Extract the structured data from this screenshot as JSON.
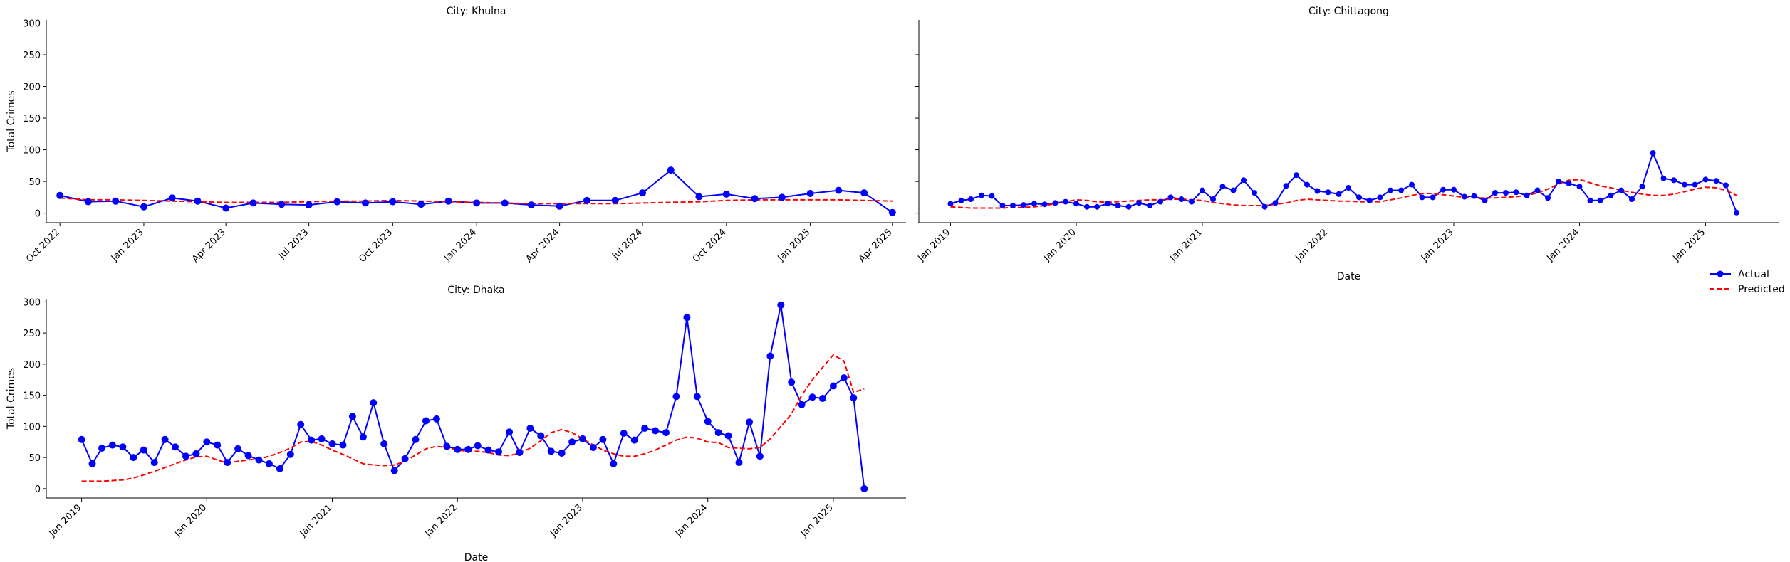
{
  "chart_data": [
    {
      "type": "line",
      "title": "City: Khulna",
      "xlabel": "",
      "ylabel": "Total Crimes",
      "ylim": [
        -15,
        305
      ],
      "yticks": [
        0,
        50,
        100,
        150,
        200,
        250,
        300
      ],
      "xlim": [
        "2022-09-16",
        "2025-04-16"
      ],
      "xticks": [
        {
          "date": "2022-10-01",
          "label": "Oct 2022"
        },
        {
          "date": "2023-01-01",
          "label": "Jan 2023"
        },
        {
          "date": "2023-04-01",
          "label": "Apr 2023"
        },
        {
          "date": "2023-07-01",
          "label": "Jul 2023"
        },
        {
          "date": "2023-10-01",
          "label": "Oct 2023"
        },
        {
          "date": "2024-01-01",
          "label": "Jan 2024"
        },
        {
          "date": "2024-04-01",
          "label": "Apr 2024"
        },
        {
          "date": "2024-07-01",
          "label": "Jul 2024"
        },
        {
          "date": "2024-10-01",
          "label": "Oct 2024"
        },
        {
          "date": "2025-01-01",
          "label": "Jan 2025"
        },
        {
          "date": "2025-04-01",
          "label": "Apr 2025"
        }
      ],
      "start": "2022-10",
      "series": [
        {
          "name": "Actual",
          "values": [
            28,
            18,
            19,
            10,
            24,
            19,
            8,
            16,
            14,
            13,
            18,
            16,
            18,
            14,
            19,
            16,
            16,
            13,
            11,
            20,
            20,
            32,
            68,
            26,
            30,
            23,
            25,
            31,
            36,
            32,
            1
          ]
        },
        {
          "name": "Predicted",
          "values": [
            24,
            21,
            21,
            20,
            19,
            18,
            17,
            17,
            17,
            18,
            19,
            19,
            20,
            19,
            18,
            17,
            16,
            15,
            15,
            15,
            15,
            16,
            17,
            18,
            20,
            21,
            21,
            21,
            21,
            20,
            19
          ]
        }
      ]
    },
    {
      "type": "line",
      "title": "City: Chittagong",
      "xlabel": "Date",
      "ylabel": "",
      "ylim": [
        -15,
        305
      ],
      "xlim": [
        "2018-10-01",
        "2025-08-01"
      ],
      "xticks": [
        {
          "date": "2019-01-01",
          "label": "Jan 2019"
        },
        {
          "date": "2020-01-01",
          "label": "Jan 2020"
        },
        {
          "date": "2021-01-01",
          "label": "Jan 2021"
        },
        {
          "date": "2022-01-01",
          "label": "Jan 2022"
        },
        {
          "date": "2023-01-01",
          "label": "Jan 2023"
        },
        {
          "date": "2024-01-01",
          "label": "Jan 2024"
        },
        {
          "date": "2025-01-01",
          "label": "Jan 2025"
        }
      ],
      "start": "2019-01",
      "series": [
        {
          "name": "Actual",
          "values": [
            15,
            20,
            22,
            28,
            27,
            12,
            12,
            13,
            15,
            14,
            16,
            18,
            15,
            10,
            10,
            15,
            12,
            10,
            16,
            12,
            18,
            25,
            22,
            18,
            36,
            22,
            42,
            36,
            52,
            32,
            10,
            16,
            43,
            60,
            45,
            35,
            33,
            30,
            40,
            25,
            20,
            25,
            36,
            36,
            45,
            25,
            25,
            37,
            37,
            26,
            27,
            20,
            32,
            32,
            33,
            28,
            36,
            24,
            50,
            47,
            42,
            20,
            20,
            28,
            36,
            22,
            42,
            95,
            55,
            52,
            45,
            45,
            53,
            51,
            44,
            1
          ]
        },
        {
          "name": "Predicted",
          "values": [
            10,
            9,
            8,
            8,
            8,
            8,
            9,
            9,
            10,
            12,
            15,
            18,
            21,
            20,
            18,
            17,
            18,
            19,
            20,
            21,
            21,
            22,
            22,
            21,
            20,
            17,
            15,
            13,
            12,
            12,
            12,
            14,
            16,
            20,
            22,
            21,
            20,
            19,
            19,
            18,
            18,
            18,
            21,
            24,
            28,
            31,
            31,
            29,
            27,
            25,
            24,
            24,
            24,
            25,
            26,
            28,
            32,
            38,
            46,
            52,
            53,
            48,
            43,
            40,
            36,
            33,
            30,
            28,
            28,
            30,
            34,
            38,
            41,
            40,
            36,
            28
          ]
        }
      ]
    },
    {
      "type": "line",
      "title": "City: Dhaka",
      "xlabel": "Date",
      "ylabel": "Total Crimes",
      "ylim": [
        -15,
        305
      ],
      "yticks": [
        0,
        50,
        100,
        150,
        200,
        250,
        300
      ],
      "xlim": [
        "2018-09-20",
        "2025-08-01"
      ],
      "xticks": [
        {
          "date": "2019-01-01",
          "label": "Jan 2019"
        },
        {
          "date": "2020-01-01",
          "label": "Jan 2020"
        },
        {
          "date": "2021-01-01",
          "label": "Jan 2021"
        },
        {
          "date": "2022-01-01",
          "label": "Jan 2022"
        },
        {
          "date": "2023-01-01",
          "label": "Jan 2023"
        },
        {
          "date": "2024-01-01",
          "label": "Jan 2024"
        },
        {
          "date": "2025-01-01",
          "label": "Jan 2025"
        }
      ],
      "start": "2019-01",
      "series": [
        {
          "name": "Actual",
          "values": [
            79,
            40,
            65,
            70,
            67,
            50,
            62,
            42,
            79,
            67,
            52,
            56,
            75,
            70,
            42,
            64,
            53,
            46,
            40,
            32,
            55,
            103,
            78,
            80,
            72,
            70,
            116,
            83,
            138,
            72,
            29,
            48,
            79,
            109,
            112,
            68,
            63,
            63,
            69,
            62,
            59,
            91,
            58,
            97,
            85,
            60,
            57,
            75,
            80,
            66,
            79,
            40,
            89,
            78,
            97,
            93,
            90,
            148,
            275,
            148,
            108,
            90,
            85,
            42,
            107,
            52,
            213,
            295,
            171,
            135,
            147,
            145,
            165,
            178,
            146,
            0
          ]
        },
        {
          "name": "Predicted",
          "values": [
            12,
            12,
            12,
            13,
            14,
            17,
            22,
            28,
            34,
            40,
            46,
            51,
            52,
            46,
            41,
            44,
            46,
            48,
            52,
            58,
            65,
            75,
            76,
            70,
            62,
            55,
            48,
            40,
            38,
            37,
            38,
            44,
            54,
            64,
            68,
            66,
            62,
            60,
            60,
            58,
            54,
            53,
            57,
            65,
            77,
            90,
            95,
            90,
            80,
            70,
            62,
            56,
            52,
            52,
            56,
            62,
            70,
            78,
            83,
            81,
            75,
            74,
            66,
            65,
            64,
            66,
            80,
            100,
            120,
            150,
            175,
            195,
            215,
            205,
            155,
            160
          ]
        }
      ]
    }
  ],
  "legend": {
    "placement": "right-middle",
    "entries": [
      {
        "name": "Actual",
        "color": "#0000ff",
        "style": "solid-line-circle-marker"
      },
      {
        "name": "Predicted",
        "color": "#ff0000",
        "style": "dashed-line"
      }
    ]
  },
  "colors": {
    "actual": "#0000ff",
    "predicted": "#ff0000",
    "axis": "#000000"
  }
}
